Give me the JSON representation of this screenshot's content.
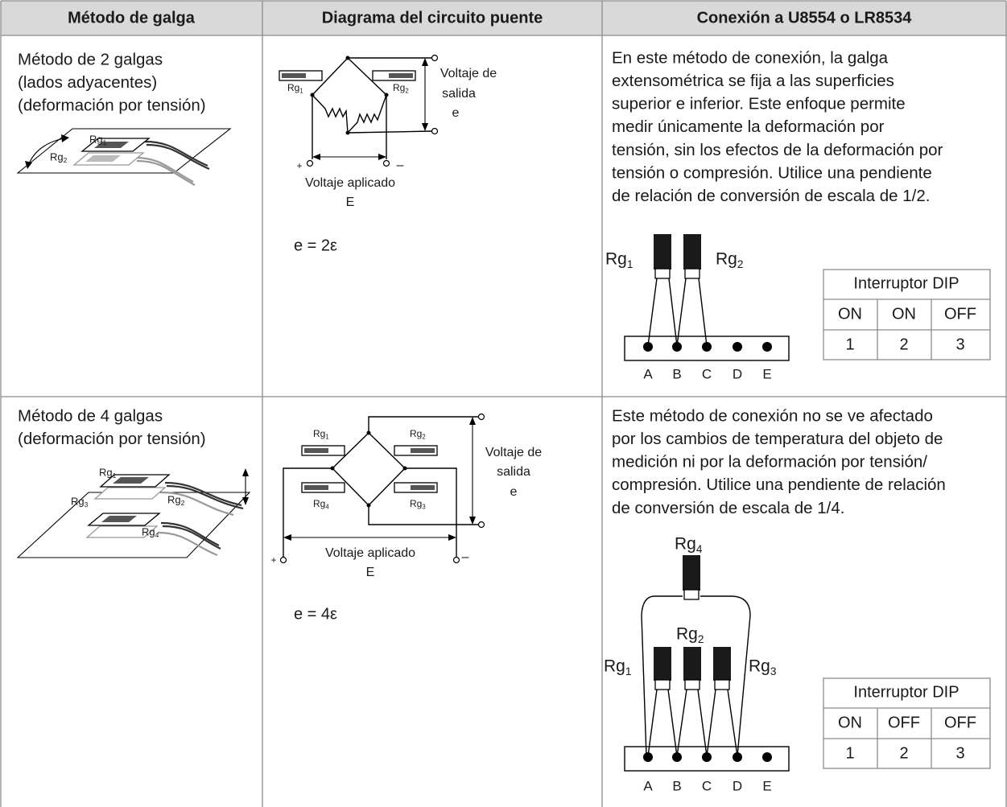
{
  "header": [
    "Método de galga",
    "Diagrama del circuito puente",
    "Conexión a U8554 o LR8534"
  ],
  "rows": [
    {
      "method": [
        "Método de 2 galgas",
        "(lados adyacentes)",
        "(deformación por tensión)"
      ],
      "illustration_labels": [
        {
          "base": "Rg",
          "sub": "1"
        },
        {
          "base": "Rg",
          "sub": "2"
        }
      ],
      "circuit": {
        "gauges": [
          {
            "base": "Rg",
            "sub": "1"
          },
          {
            "base": "Rg",
            "sub": "2"
          }
        ],
        "output": [
          "Voltaje de",
          "salida",
          "e"
        ],
        "plus": "+",
        "minus": "–",
        "applied": [
          "Voltaje aplicado",
          "E"
        ]
      },
      "formula": "e = 2ε",
      "description": [
        "En este método de conexión, la galga",
        "extensométrica se fija a las superficies",
        "superior e inferior. Este enfoque permite",
        "medir únicamente la deformación por",
        "tensión, sin los efectos de la deformación por",
        "tensión o compresión. Utilice una pendiente",
        "de relación de conversión de escala de 1/2."
      ],
      "connection": {
        "gauges": [
          {
            "base": "Rg",
            "sub": "1"
          },
          {
            "base": "Rg",
            "sub": "2"
          }
        ],
        "terminals": [
          "A",
          "B",
          "C",
          "D",
          "E"
        ]
      },
      "dip": {
        "title": "Interruptor DIP",
        "states": [
          "ON",
          "ON",
          "OFF"
        ],
        "numbers": [
          1,
          2,
          3
        ]
      }
    },
    {
      "method": [
        "Método de 4 galgas",
        "(deformación por tensión)"
      ],
      "illustration_labels": [
        {
          "base": "Rg",
          "sub": "1"
        },
        {
          "base": "Rg",
          "sub": "2"
        },
        {
          "base": "Rg",
          "sub": "3"
        },
        {
          "base": "Rg",
          "sub": "4"
        }
      ],
      "circuit": {
        "gauges": [
          {
            "base": "Rg",
            "sub": "1"
          },
          {
            "base": "Rg",
            "sub": "2"
          },
          {
            "base": "Rg",
            "sub": "4"
          },
          {
            "base": "Rg",
            "sub": "3"
          }
        ],
        "output": [
          "Voltaje de",
          "salida",
          "e"
        ],
        "plus": "+",
        "minus": "–",
        "applied": [
          "Voltaje aplicado",
          "E"
        ]
      },
      "formula": "e = 4ε",
      "description": [
        "Este método de conexión no se ve afectado",
        "por los cambios de temperatura del objeto de",
        "medición ni por la deformación por tensión/",
        "compresión. Utilice una pendiente de relación",
        "de conversión de escala de 1/4."
      ],
      "connection": {
        "gauges": [
          {
            "base": "Rg",
            "sub": "4"
          },
          {
            "base": "Rg",
            "sub": "2"
          },
          {
            "base": "Rg",
            "sub": "1"
          },
          {
            "base": "Rg",
            "sub": "3"
          }
        ],
        "terminals": [
          "A",
          "B",
          "C",
          "D",
          "E"
        ]
      },
      "dip": {
        "title": "Interruptor DIP",
        "states": [
          "ON",
          "OFF",
          "OFF"
        ],
        "numbers": [
          1,
          2,
          3
        ]
      }
    }
  ]
}
